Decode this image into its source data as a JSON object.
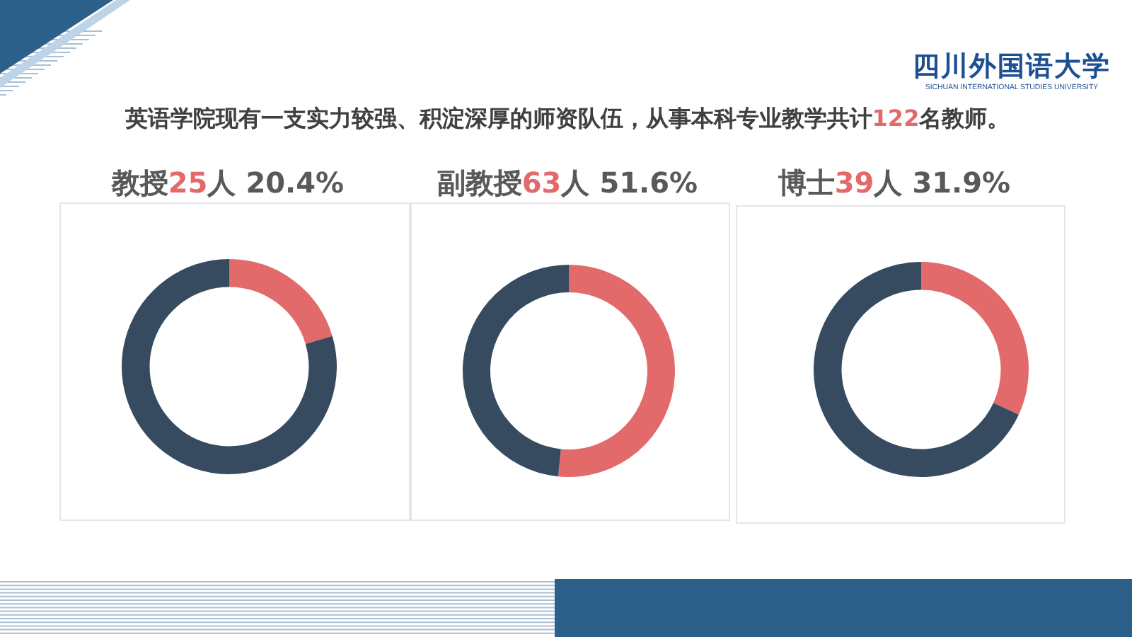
{
  "chart_data": [
    {
      "type": "other",
      "title": "英语学院现有一支实力较强、积淀深厚的师资队伍，从事本科专业教学共计122名教师。",
      "annotations": [
        "四川外国语大学",
        "SICHUAN INTERNATIONAL STUDIES UNIVERSITY"
      ]
    },
    {
      "type": "donut",
      "title": "教授25人 20.4%",
      "categories": [
        null,
        null
      ],
      "values": [
        20.4,
        79.6
      ],
      "colors": [
        "#e26a6a",
        "#364b5f"
      ]
    },
    {
      "type": "donut",
      "title": "副教授63人 51.6%",
      "categories": [
        null,
        null
      ],
      "values": [
        51.6,
        48.4
      ],
      "colors": [
        "#e26a6a",
        "#364b5f"
      ]
    },
    {
      "type": "donut",
      "title": "博士39人 31.9%",
      "categories": [
        null,
        null
      ],
      "values": [
        31.9,
        68.1
      ],
      "colors": [
        "#e26a6a",
        "#364b5f"
      ]
    }
  ]
}
